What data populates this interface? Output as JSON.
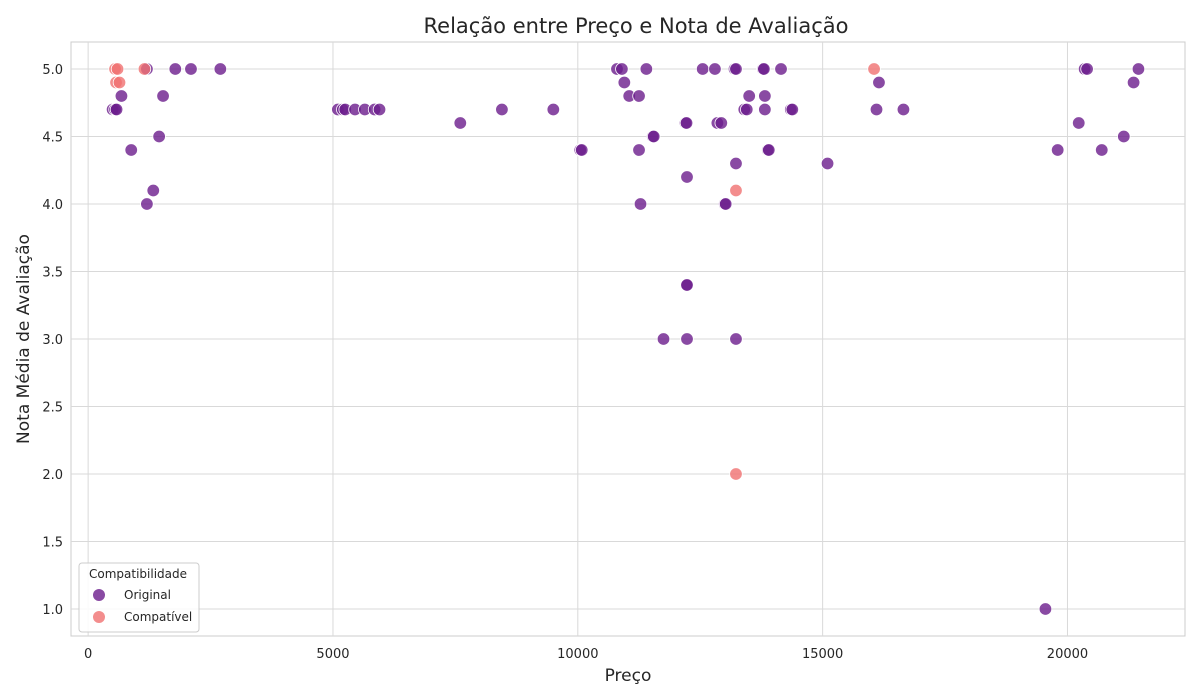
{
  "chart_data": {
    "type": "scatter",
    "title": "Relação entre Preço e Nota de Avaliação",
    "xlabel": "Preço",
    "ylabel": "Nota Média de Avaliação",
    "xlim": [
      -350,
      22400
    ],
    "ylim": [
      0.8,
      5.2
    ],
    "xticks": [
      0,
      5000,
      10000,
      15000,
      20000
    ],
    "yticks": [
      1.0,
      1.5,
      2.0,
      2.5,
      3.0,
      3.5,
      4.0,
      4.5,
      5.0
    ],
    "xtick_labels": [
      "0",
      "5000",
      "10000",
      "15000",
      "20000"
    ],
    "ytick_labels": [
      "1.0",
      "1.5",
      "2.0",
      "2.5",
      "3.0",
      "3.5",
      "4.0",
      "4.5",
      "5.0"
    ],
    "grid": true,
    "legend": {
      "title": "Compatibilidade",
      "placement": "lower-left"
    },
    "series": [
      {
        "name": "Original",
        "color": "#6b1d8c",
        "points": [
          [
            500,
            4.7
          ],
          [
            550,
            4.7
          ],
          [
            580,
            4.7
          ],
          [
            680,
            4.8
          ],
          [
            880,
            4.4
          ],
          [
            1200,
            5.0
          ],
          [
            1200,
            4.0
          ],
          [
            1330,
            4.1
          ],
          [
            1450,
            4.5
          ],
          [
            1530,
            4.8
          ],
          [
            1780,
            5.0
          ],
          [
            2100,
            5.0
          ],
          [
            2700,
            5.0
          ],
          [
            5100,
            4.7
          ],
          [
            5200,
            4.7
          ],
          [
            5250,
            4.7
          ],
          [
            5450,
            4.7
          ],
          [
            5650,
            4.7
          ],
          [
            5850,
            4.7
          ],
          [
            5950,
            4.7
          ],
          [
            7600,
            4.6
          ],
          [
            8450,
            4.7
          ],
          [
            9500,
            4.7
          ],
          [
            10050,
            4.4
          ],
          [
            10080,
            4.4
          ],
          [
            10800,
            5.0
          ],
          [
            10900,
            5.0
          ],
          [
            10950,
            4.9
          ],
          [
            11050,
            4.8
          ],
          [
            11250,
            4.8
          ],
          [
            11250,
            4.4
          ],
          [
            11280,
            4.0
          ],
          [
            11400,
            5.0
          ],
          [
            11530,
            4.5
          ],
          [
            11550,
            4.5
          ],
          [
            11750,
            3.0
          ],
          [
            12200,
            4.6
          ],
          [
            12220,
            4.6
          ],
          [
            12230,
            4.2
          ],
          [
            12220,
            3.4
          ],
          [
            12230,
            3.4
          ],
          [
            12230,
            3.0
          ],
          [
            12550,
            5.0
          ],
          [
            12800,
            5.0
          ],
          [
            12850,
            4.6
          ],
          [
            12930,
            4.6
          ],
          [
            13000,
            4.0
          ],
          [
            13020,
            4.0
          ],
          [
            13200,
            5.0
          ],
          [
            13230,
            5.0
          ],
          [
            13230,
            4.3
          ],
          [
            13230,
            3.0
          ],
          [
            13400,
            4.7
          ],
          [
            13450,
            4.7
          ],
          [
            13500,
            4.8
          ],
          [
            13780,
            5.0
          ],
          [
            13800,
            5.0
          ],
          [
            13820,
            4.8
          ],
          [
            13820,
            4.7
          ],
          [
            13880,
            4.4
          ],
          [
            13900,
            4.4
          ],
          [
            14150,
            5.0
          ],
          [
            14350,
            4.7
          ],
          [
            14380,
            4.7
          ],
          [
            15100,
            4.3
          ],
          [
            16100,
            4.7
          ],
          [
            16150,
            4.9
          ],
          [
            16650,
            4.7
          ],
          [
            19550,
            1.0
          ],
          [
            19800,
            4.4
          ],
          [
            20230,
            4.6
          ],
          [
            20350,
            5.0
          ],
          [
            20400,
            5.0
          ],
          [
            20700,
            4.4
          ],
          [
            21150,
            4.5
          ],
          [
            21350,
            4.9
          ],
          [
            21450,
            5.0
          ]
        ]
      },
      {
        "name": "Compatível",
        "color": "#f07071",
        "points": [
          [
            550,
            5.0
          ],
          [
            600,
            5.0
          ],
          [
            570,
            4.9
          ],
          [
            640,
            4.9
          ],
          [
            1150,
            5.0
          ],
          [
            13230,
            4.1
          ],
          [
            13230,
            2.0
          ],
          [
            16050,
            5.0
          ]
        ]
      }
    ]
  }
}
